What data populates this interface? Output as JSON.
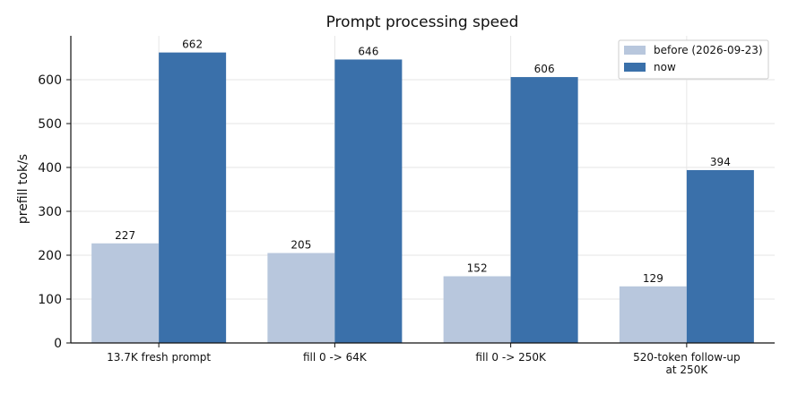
{
  "chart_data": {
    "type": "bar",
    "title": "Prompt processing speed",
    "xlabel": "",
    "ylabel": "prefill tok/s",
    "categories": [
      "13.7K fresh prompt",
      "fill 0 -> 64K",
      "fill 0 -> 250K",
      "520-token follow-up\nat 250K"
    ],
    "series": [
      {
        "name": "before (2026-09-23)",
        "values": [
          227,
          205,
          152,
          129
        ],
        "color": "#b8c7dd"
      },
      {
        "name": "now",
        "values": [
          662,
          646,
          606,
          394
        ],
        "color": "#3a70aa"
      }
    ],
    "ylim": [
      0,
      700
    ],
    "yticks": [
      0,
      100,
      200,
      300,
      400,
      500,
      600
    ],
    "grid": true,
    "legend": "top-right",
    "data_labels": true
  }
}
